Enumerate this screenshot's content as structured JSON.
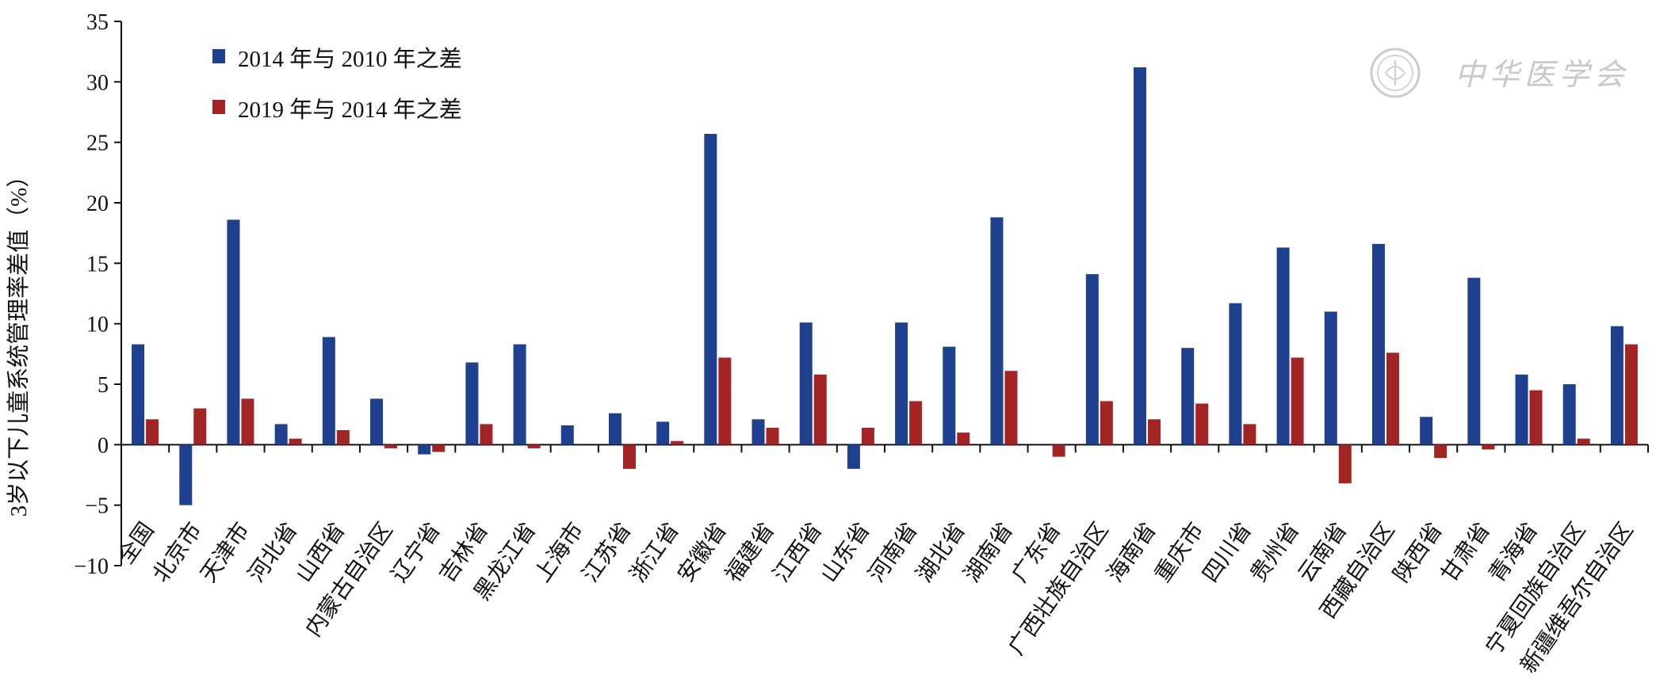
{
  "chart_data": {
    "type": "bar",
    "ylabel": "3岁以下儿童系统管理率差值（%）",
    "ylim": [
      -10,
      35
    ],
    "yticks": [
      35,
      30,
      25,
      20,
      15,
      10,
      5,
      0,
      -5,
      -10
    ],
    "ytick_labels": [
      "35",
      "30",
      "25",
      "20",
      "15",
      "10",
      "5",
      "0",
      "−5",
      "−10"
    ],
    "categories": [
      "全国",
      "北京市",
      "天津市",
      "河北省",
      "山西省",
      "内蒙古自治区",
      "辽宁省",
      "吉林省",
      "黑龙江省",
      "上海市",
      "江苏省",
      "浙江省",
      "安徽省",
      "福建省",
      "江西省",
      "山东省",
      "河南省",
      "湖北省",
      "湖南省",
      "广东省",
      "广西壮族自治区",
      "海南省",
      "重庆市",
      "四川省",
      "贵州省",
      "云南省",
      "西藏自治区",
      "陕西省",
      "甘肃省",
      "青海省",
      "宁夏回族自治区",
      "新疆维吾尔自治区"
    ],
    "series": [
      {
        "name": "2014 年与 2010 年之差",
        "color": "#1f3f8f",
        "values": [
          8.3,
          -5.0,
          18.6,
          1.7,
          8.9,
          3.8,
          -0.8,
          6.8,
          8.3,
          1.6,
          2.6,
          1.9,
          25.7,
          2.1,
          10.1,
          -2.0,
          10.1,
          8.1,
          18.8,
          0.0,
          14.1,
          31.2,
          8.0,
          11.7,
          16.3,
          11.0,
          16.6,
          2.3,
          13.8,
          5.8,
          5.0,
          9.8
        ]
      },
      {
        "name": "2019 年与 2014 年之差",
        "color": "#a32424",
        "values": [
          2.1,
          3.0,
          3.8,
          0.5,
          1.2,
          -0.3,
          -0.6,
          1.7,
          -0.3,
          0.0,
          -2.0,
          0.3,
          7.2,
          1.4,
          5.8,
          1.4,
          3.6,
          1.0,
          6.1,
          -1.0,
          3.6,
          2.1,
          3.4,
          1.7,
          7.2,
          -3.2,
          7.6,
          -1.1,
          -0.4,
          4.5,
          0.5,
          8.3
        ]
      }
    ],
    "legend_position": "top-left",
    "grid": false
  },
  "watermark": {
    "text": "中华医学会",
    "icon": "seal-logo-icon",
    "color": "#c8c8c8"
  }
}
